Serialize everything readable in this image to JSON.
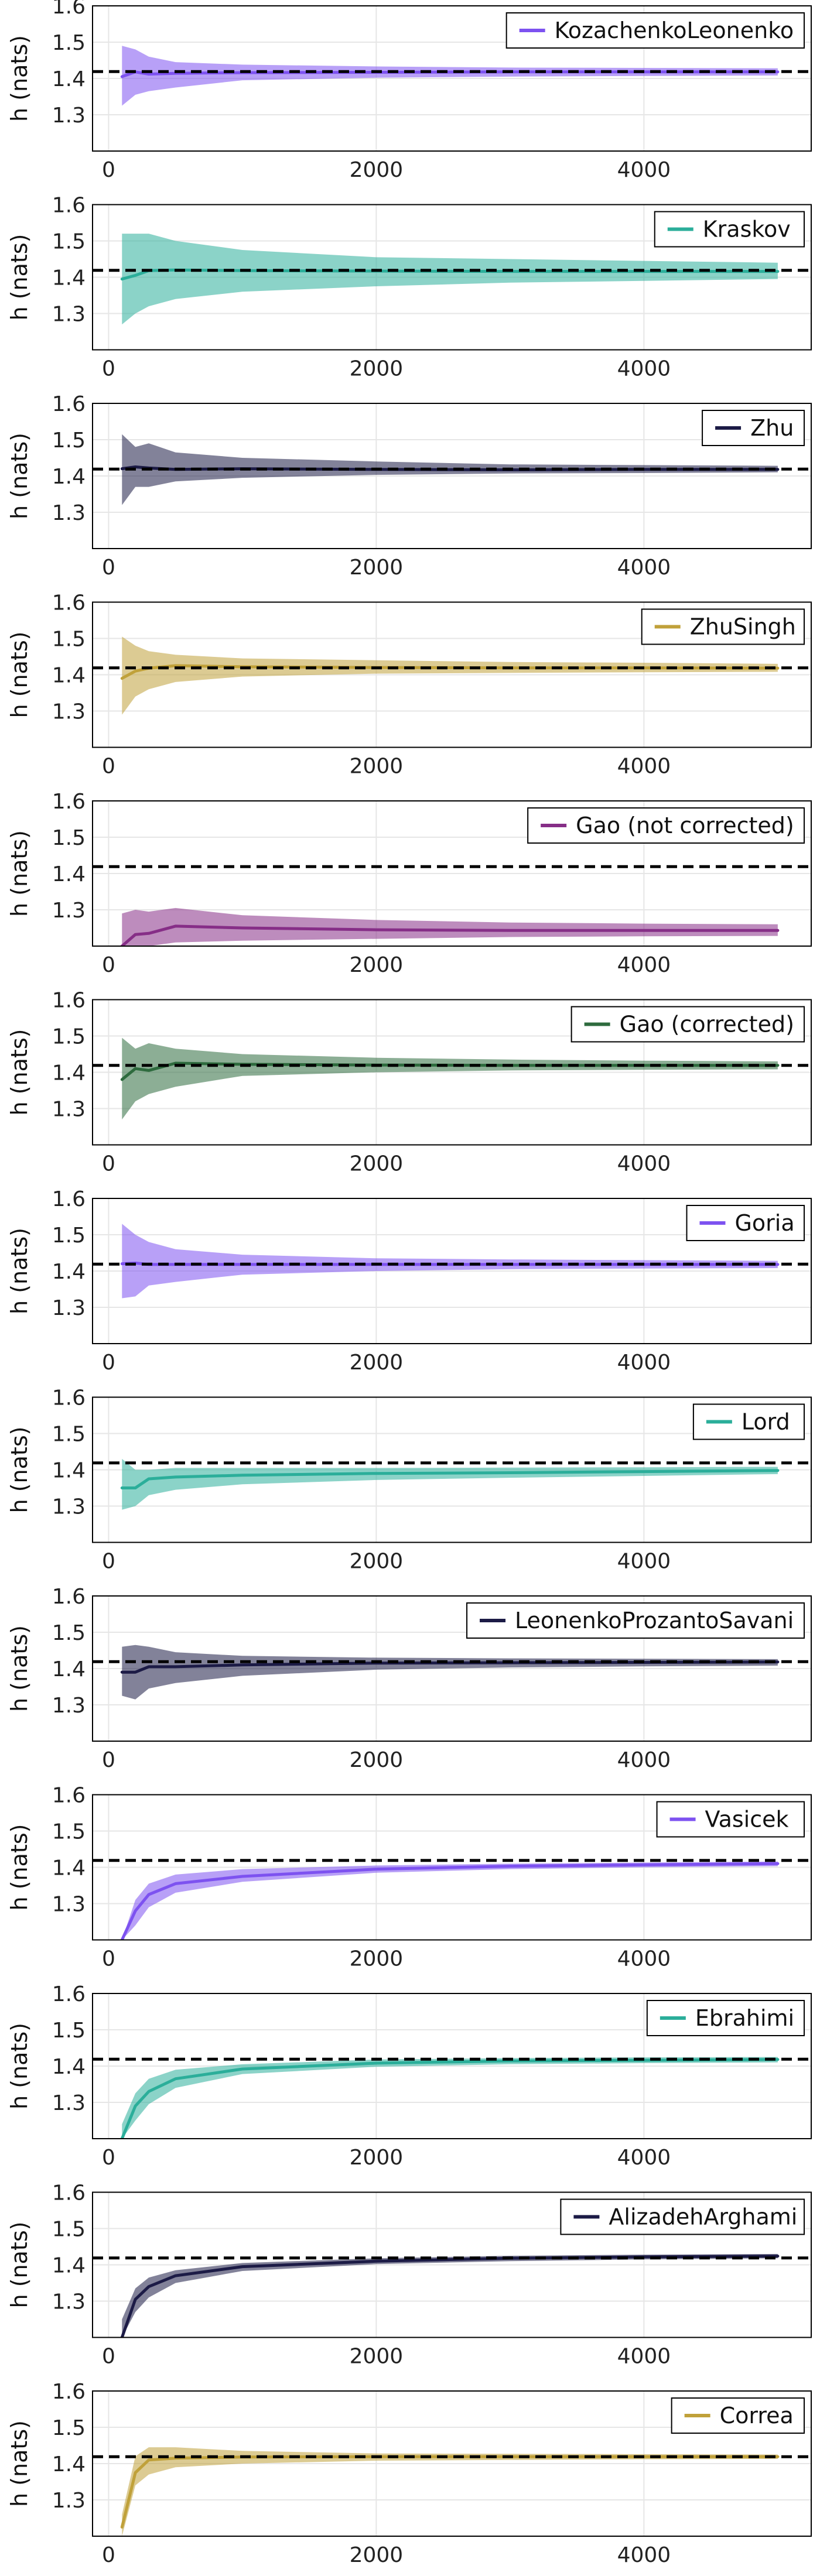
{
  "figure": {
    "ylabel": "h (nats)",
    "reference_value": 1.419,
    "reference_style": "black dashed horizontal line"
  },
  "chart_data": [
    {
      "type": "line",
      "estimator": "KozachenkoLeonenko",
      "color": "#7D52F0",
      "ylabel": "h (nats)",
      "xlim": [
        -120,
        5250
      ],
      "ylim": [
        1.2,
        1.6
      ],
      "xticks": [
        "0",
        "2000",
        "4000"
      ],
      "yticks": [
        "1.3",
        "1.4",
        "1.5",
        "1.6"
      ],
      "grid": true,
      "legend_position": "top-right",
      "reference_line": 1.419,
      "x": [
        100,
        200,
        300,
        500,
        1000,
        2000,
        3000,
        4000,
        5000
      ],
      "mean": [
        1.405,
        1.418,
        1.412,
        1.414,
        1.416,
        1.417,
        1.418,
        1.418,
        1.418
      ],
      "band_lower": [
        1.325,
        1.355,
        1.365,
        1.375,
        1.395,
        1.402,
        1.405,
        1.407,
        1.408
      ],
      "band_upper": [
        1.49,
        1.48,
        1.46,
        1.445,
        1.438,
        1.433,
        1.43,
        1.429,
        1.428
      ]
    },
    {
      "type": "line",
      "estimator": "Kraskov",
      "color": "#2BAE9A",
      "ylabel": "h (nats)",
      "xlim": [
        -120,
        5250
      ],
      "ylim": [
        1.2,
        1.6
      ],
      "xticks": [
        "0",
        "2000",
        "4000"
      ],
      "yticks": [
        "1.3",
        "1.4",
        "1.5",
        "1.6"
      ],
      "grid": true,
      "legend_position": "top-right",
      "reference_line": 1.419,
      "x": [
        100,
        200,
        300,
        500,
        1000,
        2000,
        3000,
        4000,
        5000
      ],
      "mean": [
        1.395,
        1.405,
        1.418,
        1.42,
        1.418,
        1.417,
        1.416,
        1.416,
        1.416
      ],
      "band_lower": [
        1.27,
        1.3,
        1.32,
        1.34,
        1.36,
        1.375,
        1.385,
        1.39,
        1.395
      ],
      "band_upper": [
        1.52,
        1.52,
        1.52,
        1.5,
        1.475,
        1.455,
        1.45,
        1.445,
        1.44
      ]
    },
    {
      "type": "line",
      "estimator": "Zhu",
      "color": "#1C1B46",
      "ylabel": "h (nats)",
      "xlim": [
        -120,
        5250
      ],
      "ylim": [
        1.2,
        1.6
      ],
      "xticks": [
        "0",
        "2000",
        "4000"
      ],
      "yticks": [
        "1.3",
        "1.4",
        "1.5",
        "1.6"
      ],
      "grid": true,
      "legend_position": "top-right",
      "reference_line": 1.419,
      "x": [
        100,
        200,
        300,
        500,
        1000,
        2000,
        3000,
        4000,
        5000
      ],
      "mean": [
        1.42,
        1.425,
        1.422,
        1.418,
        1.42,
        1.418,
        1.417,
        1.418,
        1.418
      ],
      "band_lower": [
        1.32,
        1.37,
        1.37,
        1.385,
        1.395,
        1.403,
        1.407,
        1.408,
        1.41
      ],
      "band_upper": [
        1.515,
        1.48,
        1.49,
        1.465,
        1.45,
        1.44,
        1.432,
        1.43,
        1.428
      ]
    },
    {
      "type": "line",
      "estimator": "ZhuSingh",
      "color": "#C0A13A",
      "ylabel": "h (nats)",
      "xlim": [
        -120,
        5250
      ],
      "ylim": [
        1.2,
        1.6
      ],
      "xticks": [
        "0",
        "2000",
        "4000"
      ],
      "yticks": [
        "1.3",
        "1.4",
        "1.5",
        "1.6"
      ],
      "grid": true,
      "legend_position": "top-right",
      "reference_line": 1.419,
      "x": [
        100,
        200,
        300,
        500,
        1000,
        2000,
        3000,
        4000,
        5000
      ],
      "mean": [
        1.39,
        1.41,
        1.418,
        1.425,
        1.422,
        1.42,
        1.419,
        1.419,
        1.418
      ],
      "band_lower": [
        1.29,
        1.34,
        1.36,
        1.38,
        1.395,
        1.403,
        1.405,
        1.407,
        1.408
      ],
      "band_upper": [
        1.505,
        1.48,
        1.465,
        1.455,
        1.445,
        1.44,
        1.435,
        1.433,
        1.43
      ]
    },
    {
      "type": "line",
      "estimator": "Gao (not corrected)",
      "color": "#862E87",
      "ylabel": "h (nats)",
      "xlim": [
        -120,
        5250
      ],
      "ylim": [
        1.2,
        1.6
      ],
      "xticks": [
        "0",
        "2000",
        "4000"
      ],
      "yticks": [
        "1.3",
        "1.4",
        "1.5",
        "1.6"
      ],
      "grid": true,
      "legend_position": "top-right",
      "reference_line": 1.419,
      "x": [
        100,
        200,
        300,
        500,
        1000,
        2000,
        3000,
        4000,
        5000
      ],
      "mean": [
        1.2,
        1.232,
        1.235,
        1.255,
        1.25,
        1.245,
        1.243,
        1.243,
        1.243
      ],
      "band_lower": [
        1.2,
        1.2,
        1.2,
        1.21,
        1.215,
        1.22,
        1.225,
        1.227,
        1.228
      ],
      "band_upper": [
        1.29,
        1.3,
        1.295,
        1.305,
        1.285,
        1.272,
        1.265,
        1.262,
        1.26
      ]
    },
    {
      "type": "line",
      "estimator": "Gao (corrected)",
      "color": "#2E6B3E",
      "ylabel": "h (nats)",
      "xlim": [
        -120,
        5250
      ],
      "ylim": [
        1.2,
        1.6
      ],
      "xticks": [
        "0",
        "2000",
        "4000"
      ],
      "yticks": [
        "1.3",
        "1.4",
        "1.5",
        "1.6"
      ],
      "grid": true,
      "legend_position": "top-right",
      "reference_line": 1.419,
      "x": [
        100,
        200,
        300,
        500,
        1000,
        2000,
        3000,
        4000,
        5000
      ],
      "mean": [
        1.38,
        1.41,
        1.405,
        1.425,
        1.422,
        1.42,
        1.419,
        1.419,
        1.419
      ],
      "band_lower": [
        1.27,
        1.32,
        1.34,
        1.36,
        1.39,
        1.4,
        1.405,
        1.407,
        1.408
      ],
      "band_upper": [
        1.495,
        1.465,
        1.48,
        1.465,
        1.45,
        1.44,
        1.435,
        1.432,
        1.43
      ]
    },
    {
      "type": "line",
      "estimator": "Goria",
      "color": "#7D52F0",
      "ylabel": "h (nats)",
      "xlim": [
        -120,
        5250
      ],
      "ylim": [
        1.2,
        1.6
      ],
      "xticks": [
        "0",
        "2000",
        "4000"
      ],
      "yticks": [
        "1.3",
        "1.4",
        "1.5",
        "1.6"
      ],
      "grid": true,
      "legend_position": "top-right",
      "reference_line": 1.419,
      "x": [
        100,
        200,
        300,
        500,
        1000,
        2000,
        3000,
        4000,
        5000
      ],
      "mean": [
        1.42,
        1.422,
        1.418,
        1.418,
        1.418,
        1.418,
        1.418,
        1.418,
        1.418
      ],
      "band_lower": [
        1.325,
        1.33,
        1.36,
        1.37,
        1.39,
        1.4,
        1.405,
        1.407,
        1.408
      ],
      "band_upper": [
        1.53,
        1.5,
        1.48,
        1.46,
        1.445,
        1.435,
        1.432,
        1.43,
        1.428
      ]
    },
    {
      "type": "line",
      "estimator": "Lord",
      "color": "#2BAE9A",
      "ylabel": "h (nats)",
      "xlim": [
        -120,
        5250
      ],
      "ylim": [
        1.2,
        1.6
      ],
      "xticks": [
        "0",
        "2000",
        "4000"
      ],
      "yticks": [
        "1.3",
        "1.4",
        "1.5",
        "1.6"
      ],
      "grid": true,
      "legend_position": "top-right",
      "reference_line": 1.419,
      "x": [
        100,
        200,
        300,
        500,
        1000,
        2000,
        3000,
        4000,
        5000
      ],
      "mean": [
        1.35,
        1.35,
        1.375,
        1.38,
        1.385,
        1.39,
        1.392,
        1.395,
        1.398
      ],
      "band_lower": [
        1.29,
        1.3,
        1.33,
        1.345,
        1.36,
        1.372,
        1.378,
        1.383,
        1.388
      ],
      "band_upper": [
        1.43,
        1.4,
        1.4,
        1.405,
        1.405,
        1.405,
        1.406,
        1.407,
        1.408
      ]
    },
    {
      "type": "line",
      "estimator": "LeonenkoProzantoSavani",
      "color": "#1C1B46",
      "ylabel": "h (nats)",
      "xlim": [
        -120,
        5250
      ],
      "ylim": [
        1.2,
        1.6
      ],
      "xticks": [
        "0",
        "2000",
        "4000"
      ],
      "yticks": [
        "1.3",
        "1.4",
        "1.5",
        "1.6"
      ],
      "grid": true,
      "legend_position": "top-right",
      "reference_line": 1.419,
      "x": [
        100,
        200,
        300,
        500,
        1000,
        2000,
        3000,
        4000,
        5000
      ],
      "mean": [
        1.39,
        1.39,
        1.405,
        1.405,
        1.41,
        1.415,
        1.416,
        1.417,
        1.418
      ],
      "band_lower": [
        1.325,
        1.315,
        1.345,
        1.36,
        1.38,
        1.397,
        1.403,
        1.406,
        1.408
      ],
      "band_upper": [
        1.46,
        1.465,
        1.46,
        1.445,
        1.435,
        1.43,
        1.428,
        1.427,
        1.426
      ]
    },
    {
      "type": "line",
      "estimator": "Vasicek",
      "color": "#7D52F0",
      "ylabel": "h (nats)",
      "xlim": [
        -120,
        5250
      ],
      "ylim": [
        1.2,
        1.6
      ],
      "xticks": [
        "0",
        "2000",
        "4000"
      ],
      "yticks": [
        "1.3",
        "1.4",
        "1.5",
        "1.6"
      ],
      "grid": true,
      "legend_position": "top-right",
      "reference_line": 1.419,
      "x": [
        100,
        200,
        300,
        500,
        1000,
        2000,
        3000,
        4000,
        5000
      ],
      "mean": [
        1.2,
        1.28,
        1.325,
        1.355,
        1.375,
        1.395,
        1.403,
        1.407,
        1.41
      ],
      "band_lower": [
        1.2,
        1.24,
        1.29,
        1.33,
        1.36,
        1.385,
        1.395,
        1.4,
        1.403
      ],
      "band_upper": [
        1.2,
        1.31,
        1.355,
        1.38,
        1.395,
        1.405,
        1.41,
        1.413,
        1.416
      ]
    },
    {
      "type": "line",
      "estimator": "Ebrahimi",
      "color": "#2BAE9A",
      "ylabel": "h (nats)",
      "xlim": [
        -120,
        5250
      ],
      "ylim": [
        1.2,
        1.6
      ],
      "xticks": [
        "0",
        "2000",
        "4000"
      ],
      "yticks": [
        "1.3",
        "1.4",
        "1.5",
        "1.6"
      ],
      "grid": true,
      "legend_position": "top-right",
      "reference_line": 1.419,
      "x": [
        100,
        200,
        300,
        500,
        1000,
        2000,
        3000,
        4000,
        5000
      ],
      "mean": [
        1.2,
        1.29,
        1.33,
        1.365,
        1.392,
        1.408,
        1.414,
        1.416,
        1.418
      ],
      "band_lower": [
        1.2,
        1.25,
        1.295,
        1.34,
        1.378,
        1.398,
        1.405,
        1.408,
        1.41
      ],
      "band_upper": [
        1.24,
        1.325,
        1.365,
        1.39,
        1.405,
        1.418,
        1.422,
        1.424,
        1.425
      ]
    },
    {
      "type": "line",
      "estimator": "AlizadehArghami",
      "color": "#1C1B46",
      "ylabel": "h (nats)",
      "xlim": [
        -120,
        5250
      ],
      "ylim": [
        1.2,
        1.6
      ],
      "xticks": [
        "0",
        "2000",
        "4000"
      ],
      "yticks": [
        "1.3",
        "1.4",
        "1.5",
        "1.6"
      ],
      "grid": true,
      "legend_position": "top-right",
      "reference_line": 1.419,
      "x": [
        100,
        200,
        300,
        500,
        1000,
        2000,
        3000,
        4000,
        5000
      ],
      "mean": [
        1.2,
        1.305,
        1.34,
        1.37,
        1.395,
        1.41,
        1.418,
        1.422,
        1.424
      ],
      "band_lower": [
        1.2,
        1.27,
        1.31,
        1.35,
        1.383,
        1.402,
        1.41,
        1.415,
        1.418
      ],
      "band_upper": [
        1.25,
        1.335,
        1.365,
        1.385,
        1.405,
        1.418,
        1.425,
        1.428,
        1.43
      ]
    },
    {
      "type": "line",
      "estimator": "Correa",
      "color": "#C0A13A",
      "ylabel": "h (nats)",
      "xlim": [
        -120,
        5250
      ],
      "ylim": [
        1.2,
        1.6
      ],
      "xticks": [
        "0",
        "2000",
        "4000"
      ],
      "yticks": [
        "1.3",
        "1.4",
        "1.5",
        "1.6"
      ],
      "grid": true,
      "legend_position": "top-right",
      "reference_line": 1.419,
      "x": [
        100,
        200,
        300,
        500,
        1000,
        2000,
        3000,
        4000,
        5000
      ],
      "mean": [
        1.225,
        1.375,
        1.41,
        1.415,
        1.418,
        1.419,
        1.419,
        1.419,
        1.419
      ],
      "band_lower": [
        1.2,
        1.34,
        1.37,
        1.39,
        1.4,
        1.408,
        1.41,
        1.412,
        1.413
      ],
      "band_upper": [
        1.26,
        1.42,
        1.445,
        1.445,
        1.435,
        1.428,
        1.427,
        1.426,
        1.425
      ]
    }
  ]
}
